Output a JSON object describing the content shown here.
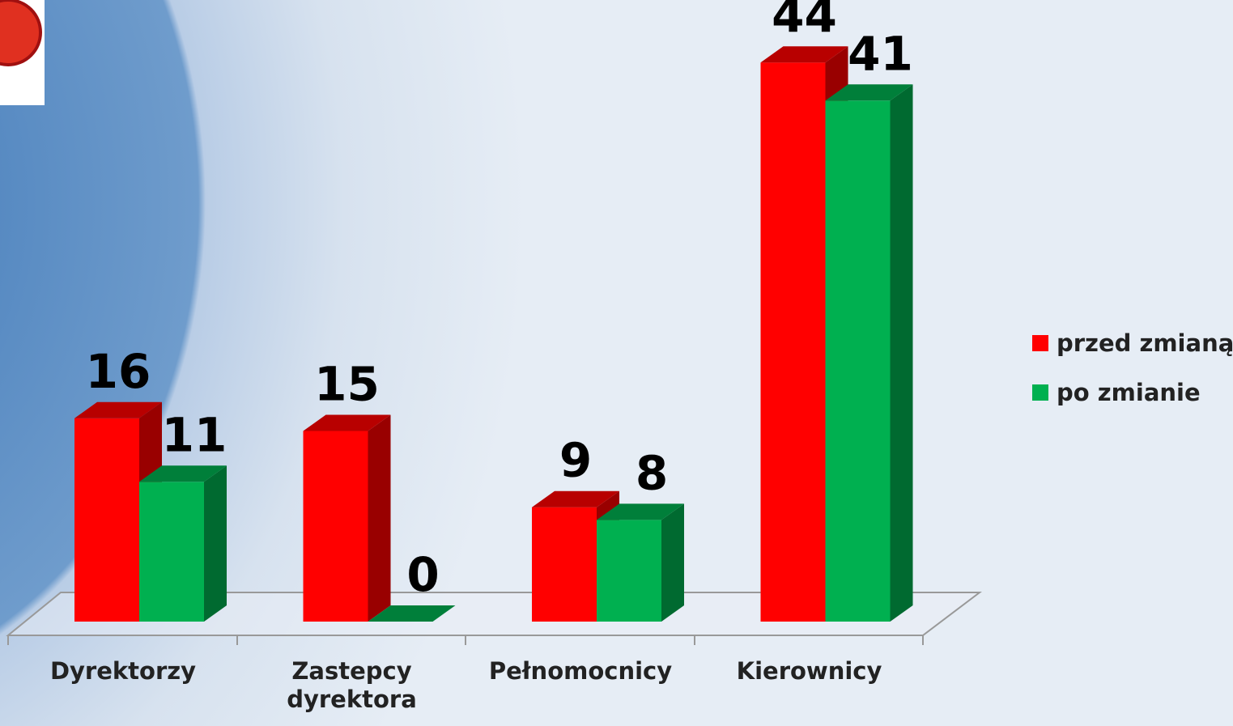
{
  "chart_data": {
    "type": "bar3d",
    "categories": [
      "Dyrektorzy",
      "Zastepcy dyrektora",
      "Pełnomocnicy",
      "Kierownicy"
    ],
    "series": [
      {
        "name": "przed zmianą",
        "color": "#ff0000",
        "values": [
          16,
          15,
          9,
          44
        ]
      },
      {
        "name": "po zmianie",
        "color": "#00b050",
        "values": [
          11,
          0,
          8,
          41
        ]
      }
    ],
    "legend": "right"
  }
}
